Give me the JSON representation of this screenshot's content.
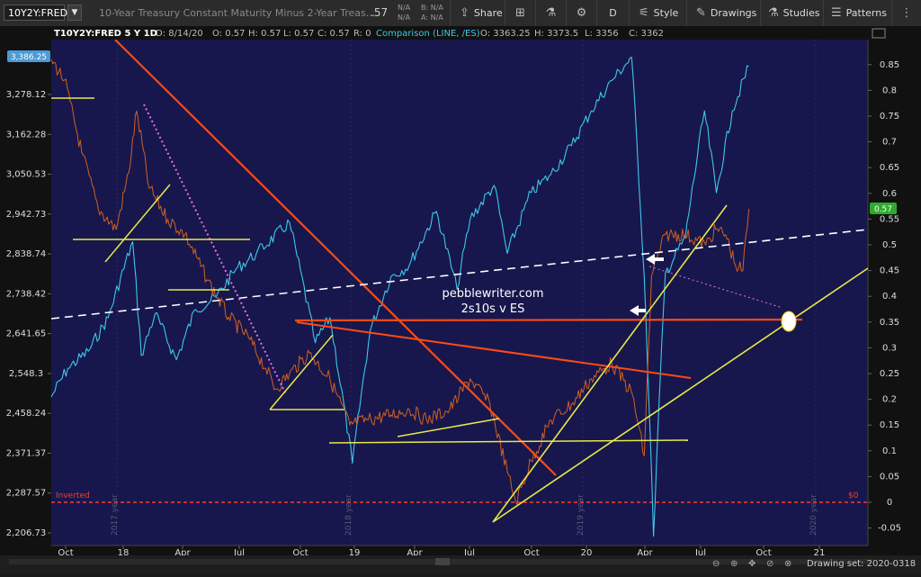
{
  "toolbar": {
    "symbol": "10Y2Y:FRED",
    "description": "10-Year Treasury Constant Maturity Minus 2-Year Treas...",
    "last": ".57",
    "bid_label": "B: N/A",
    "ask_label": "A: N/A",
    "na1": "N/A",
    "na2": "N/A",
    "share": "Share",
    "period": "D",
    "style": "Style",
    "drawings": "Drawings",
    "studies": "Studies",
    "patterns": "Patterns"
  },
  "legend": {
    "symbol_line": "T10Y2Y:FRED 5 Y 1D",
    "date": "D: 8/14/20",
    "o": "O: 0.57",
    "h": "H: 0.57",
    "l": "L: 0.57",
    "c": "C: 0.57",
    "r": "R: 0",
    "comparison": "Comparison (LINE, /ES)",
    "comp_o": "O: 3363.25",
    "comp_h": "H: 3373.5",
    "comp_l": "L: 3356",
    "comp_c": "C: 3362"
  },
  "annotations": {
    "watermark": "pebblewriter.com",
    "subtitle": "2s10s v ES",
    "inverted": "Inverted",
    "zero_right": "$0",
    "year_2017": "2017 year",
    "year_2018": "2018 year",
    "year_2019": "2019 year",
    "year_2020": "2020 year"
  },
  "footer": {
    "drawing_set": "Drawing set: 2020-0318"
  },
  "colors": {
    "background": "#17174d",
    "spread": "#d2601f",
    "spread_alt": "#4c9a28",
    "comparison": "#3ec8e8",
    "trendline_orange": "#ff4a14",
    "trendline_yellow": "#e8e84a",
    "dashed_white": "#ffffff",
    "dotted_magenta": "#e86ee8",
    "last_badge": "#2faa2f",
    "comp_badge": "#4a9bd6",
    "inverted": "#ff3a2a"
  },
  "chart_data": {
    "type": "line",
    "title": "10-Year Treasury Constant Maturity Minus 2-Year Treas...",
    "x_tick_labels": [
      "Oct",
      "18",
      "Apr",
      "Jul",
      "Oct",
      "19",
      "Apr",
      "Jul",
      "Oct",
      "20",
      "Apr",
      "Jul",
      "Oct",
      "21"
    ],
    "left_axis_ticks": [
      "3,278.12",
      "3,162.28",
      "3,050.53",
      "2,942.73",
      "2,838.74",
      "2,738.42",
      "2,641.65",
      "2,548.3",
      "2,458.24",
      "2,371.37",
      "2,287.57",
      "2,206.73"
    ],
    "left_axis_current": "3,386.25",
    "right_axis_ticks": [
      "0.85",
      "0.8",
      "0.75",
      "0.7",
      "0.65",
      "0.6",
      "0.55",
      "0.5",
      "0.45",
      "0.4",
      "0.35",
      "0.3",
      "0.25",
      "0.2",
      "0.15",
      "0.1",
      "0.05",
      "0",
      "-0.05"
    ],
    "right_axis_current": "0.57",
    "ylim_right": [
      -0.07,
      0.88
    ],
    "series": [
      {
        "name": "T10Y2Y:FRED",
        "axis": "right",
        "x": [
          "2017-09-25",
          "2017-10-15",
          "2017-11-10",
          "2017-12-05",
          "2018-01-01",
          "2018-01-20",
          "2018-02-01",
          "2018-02-20",
          "2018-03-20",
          "2018-04-15",
          "2018-05-20",
          "2018-06-20",
          "2018-07-20",
          "2018-08-15",
          "2018-08-30",
          "2018-09-20",
          "2018-10-20",
          "2018-11-20",
          "2018-12-20",
          "2019-01-15",
          "2019-02-20",
          "2019-03-20",
          "2019-04-15",
          "2019-05-20",
          "2019-06-20",
          "2019-07-20",
          "2019-08-15",
          "2019-08-28",
          "2019-09-20",
          "2019-10-20",
          "2019-11-20",
          "2019-12-20",
          "2020-01-20",
          "2020-02-20",
          "2020-03-09",
          "2020-03-20",
          "2020-04-10",
          "2020-05-10",
          "2020-06-10",
          "2020-06-25",
          "2020-07-10",
          "2020-07-25",
          "2020-08-05",
          "2020-08-14"
        ],
        "y": [
          0.86,
          0.82,
          0.68,
          0.57,
          0.53,
          0.64,
          0.76,
          0.61,
          0.55,
          0.52,
          0.43,
          0.36,
          0.32,
          0.26,
          0.22,
          0.25,
          0.29,
          0.24,
          0.15,
          0.16,
          0.17,
          0.18,
          0.16,
          0.18,
          0.24,
          0.19,
          0.06,
          0.0,
          0.08,
          0.16,
          0.19,
          0.24,
          0.27,
          0.21,
          0.09,
          0.44,
          0.52,
          0.52,
          0.5,
          0.53,
          0.52,
          0.46,
          0.45,
          0.57
        ]
      },
      {
        "name": "/ES",
        "axis": "left",
        "x": [
          "2017-09-25",
          "2017-10-20",
          "2017-11-20",
          "2017-12-20",
          "2018-01-26",
          "2018-02-08",
          "2018-03-01",
          "2018-04-02",
          "2018-05-01",
          "2018-06-01",
          "2018-07-01",
          "2018-08-01",
          "2018-09-20",
          "2018-10-29",
          "2018-11-20",
          "2018-12-24",
          "2019-01-20",
          "2019-02-20",
          "2019-03-20",
          "2019-04-30",
          "2019-05-31",
          "2019-06-20",
          "2019-07-26",
          "2019-08-15",
          "2019-09-20",
          "2019-10-20",
          "2019-11-20",
          "2019-12-20",
          "2020-01-20",
          "2020-02-19",
          "2020-03-09",
          "2020-03-23",
          "2020-04-10",
          "2020-05-10",
          "2020-06-08",
          "2020-06-26",
          "2020-07-20",
          "2020-08-14"
        ],
        "y": [
          2495,
          2560,
          2600,
          2680,
          2870,
          2590,
          2690,
          2580,
          2700,
          2730,
          2800,
          2840,
          2920,
          2620,
          2680,
          2350,
          2650,
          2780,
          2810,
          2950,
          2750,
          2930,
          3020,
          2840,
          3000,
          3050,
          3130,
          3230,
          3320,
          3390,
          2780,
          2200,
          2790,
          2880,
          3230,
          3000,
          3230,
          3362
        ]
      }
    ],
    "reference_lines": [
      {
        "name": "Inverted",
        "axis": "right",
        "y": 0
      }
    ]
  }
}
